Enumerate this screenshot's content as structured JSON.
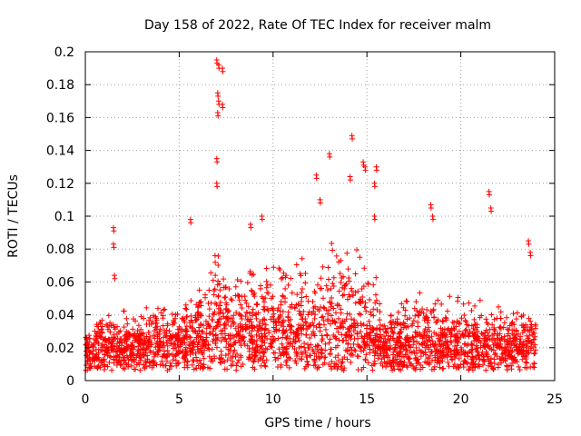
{
  "chart_data": {
    "type": "scatter",
    "title": "Day 158 of 2022, Rate Of TEC Index for receiver malm",
    "xlabel": "GPS time / hours",
    "ylabel": "ROTI / TECUs",
    "xlim": [
      0,
      25
    ],
    "ylim": [
      0,
      0.2
    ],
    "xticks": [
      0,
      5,
      10,
      15,
      20,
      25
    ],
    "yticks": [
      0,
      0.02,
      0.04,
      0.06,
      0.08,
      0.1,
      0.12,
      0.14,
      0.16,
      0.18,
      0.2
    ],
    "grid": true,
    "marker": "+",
    "color": "#ff0000",
    "series": [
      {
        "name": "ROTI",
        "profile": [
          {
            "x": 0.0,
            "base": 0.018,
            "spread": 0.012
          },
          {
            "x": 1.0,
            "base": 0.02,
            "spread": 0.02
          },
          {
            "x": 2.0,
            "base": 0.02,
            "spread": 0.02
          },
          {
            "x": 3.0,
            "base": 0.02,
            "spread": 0.018
          },
          {
            "x": 4.0,
            "base": 0.022,
            "spread": 0.022
          },
          {
            "x": 5.0,
            "base": 0.022,
            "spread": 0.025
          },
          {
            "x": 6.0,
            "base": 0.022,
            "spread": 0.028
          },
          {
            "x": 7.0,
            "base": 0.03,
            "spread": 0.045
          },
          {
            "x": 8.0,
            "base": 0.028,
            "spread": 0.04
          },
          {
            "x": 9.0,
            "base": 0.028,
            "spread": 0.04
          },
          {
            "x": 10.0,
            "base": 0.03,
            "spread": 0.045
          },
          {
            "x": 11.0,
            "base": 0.03,
            "spread": 0.04
          },
          {
            "x": 12.0,
            "base": 0.03,
            "spread": 0.045
          },
          {
            "x": 13.0,
            "base": 0.032,
            "spread": 0.05
          },
          {
            "x": 14.0,
            "base": 0.03,
            "spread": 0.05
          },
          {
            "x": 15.0,
            "base": 0.03,
            "spread": 0.05
          },
          {
            "x": 15.7,
            "base": 0.02,
            "spread": 0.03
          },
          {
            "x": 16.0,
            "base": 0.018,
            "spread": 0.02
          },
          {
            "x": 17.0,
            "base": 0.02,
            "spread": 0.025
          },
          {
            "x": 18.0,
            "base": 0.022,
            "spread": 0.03
          },
          {
            "x": 19.0,
            "base": 0.022,
            "spread": 0.025
          },
          {
            "x": 20.0,
            "base": 0.022,
            "spread": 0.025
          },
          {
            "x": 21.0,
            "base": 0.022,
            "spread": 0.025
          },
          {
            "x": 22.0,
            "base": 0.02,
            "spread": 0.022
          },
          {
            "x": 23.0,
            "base": 0.02,
            "spread": 0.02
          },
          {
            "x": 24.0,
            "base": 0.02,
            "spread": 0.018
          }
        ],
        "spikes": [
          {
            "x": 1.5,
            "y": 0.093
          },
          {
            "x": 1.5,
            "y": 0.083
          },
          {
            "x": 1.55,
            "y": 0.064
          },
          {
            "x": 5.6,
            "y": 0.098
          },
          {
            "x": 7.0,
            "y": 0.195
          },
          {
            "x": 7.1,
            "y": 0.192
          },
          {
            "x": 7.3,
            "y": 0.19
          },
          {
            "x": 7.05,
            "y": 0.175
          },
          {
            "x": 7.1,
            "y": 0.17
          },
          {
            "x": 7.3,
            "y": 0.168
          },
          {
            "x": 7.05,
            "y": 0.163
          },
          {
            "x": 7.0,
            "y": 0.135
          },
          {
            "x": 7.0,
            "y": 0.12
          },
          {
            "x": 9.4,
            "y": 0.1
          },
          {
            "x": 8.8,
            "y": 0.095
          },
          {
            "x": 12.3,
            "y": 0.125
          },
          {
            "x": 12.5,
            "y": 0.11
          },
          {
            "x": 13.0,
            "y": 0.138
          },
          {
            "x": 14.2,
            "y": 0.149
          },
          {
            "x": 14.1,
            "y": 0.124
          },
          {
            "x": 14.8,
            "y": 0.133
          },
          {
            "x": 14.9,
            "y": 0.13
          },
          {
            "x": 15.5,
            "y": 0.13
          },
          {
            "x": 15.4,
            "y": 0.12
          },
          {
            "x": 15.4,
            "y": 0.1
          },
          {
            "x": 18.4,
            "y": 0.107
          },
          {
            "x": 18.5,
            "y": 0.1
          },
          {
            "x": 21.5,
            "y": 0.115
          },
          {
            "x": 21.6,
            "y": 0.105
          },
          {
            "x": 23.6,
            "y": 0.085
          },
          {
            "x": 23.7,
            "y": 0.078
          }
        ]
      }
    ]
  }
}
